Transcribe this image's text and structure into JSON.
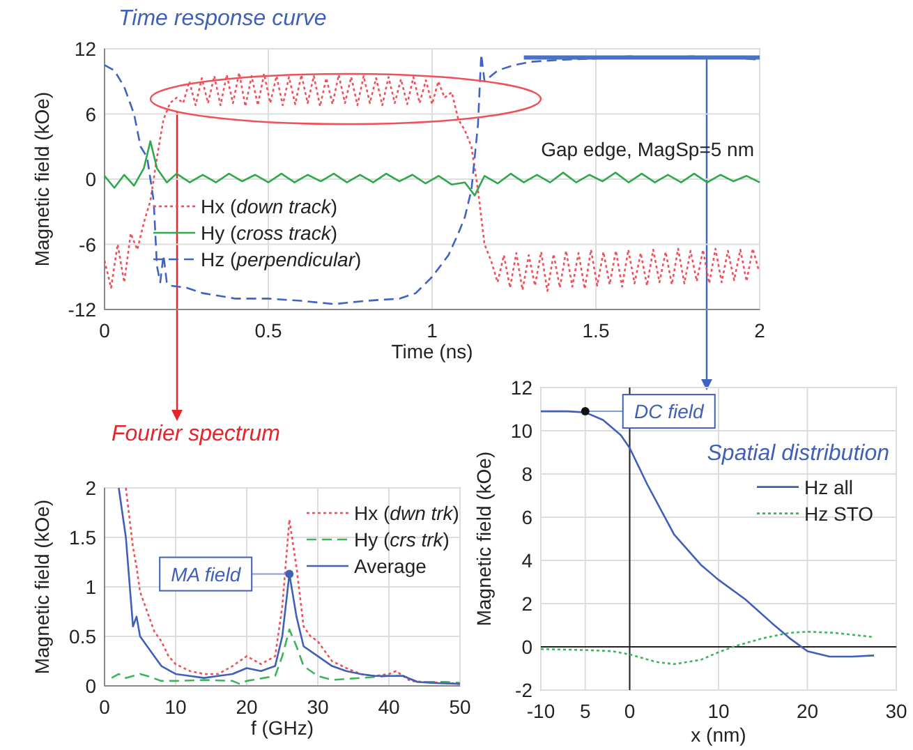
{
  "chart_data": [
    {
      "type": "line",
      "title": "Time response curve",
      "xlabel": "Time (ns)",
      "ylabel": "Magnetic field (kOe)",
      "xlim": [
        0,
        2
      ],
      "xticks": [
        0,
        0.5,
        1,
        1.5,
        2
      ],
      "ylim": [
        -12,
        12
      ],
      "yticks": [
        -12,
        -6,
        0,
        6,
        12
      ],
      "grid": true,
      "legend": "left",
      "annotations": [
        "Gap edge, MagSp=5 nm"
      ],
      "series": [
        {
          "name": "Hx (down track)",
          "color": "#f0505a",
          "line_style": "dotted",
          "x": [
            0,
            0.02,
            0.04,
            0.06,
            0.08,
            0.1,
            0.12,
            0.14,
            0.16,
            0.18,
            0.2,
            0.22,
            0.24,
            0.259,
            0.278,
            0.297,
            0.316,
            0.335,
            0.354,
            0.373,
            0.392,
            0.411,
            0.43,
            0.449,
            0.468,
            0.487,
            0.506,
            0.525,
            0.544,
            0.563,
            0.582,
            0.601,
            0.62,
            0.639,
            0.658,
            0.677,
            0.696,
            0.715,
            0.734,
            0.753,
            0.772,
            0.791,
            0.81,
            0.829,
            0.848,
            0.867,
            0.886,
            0.905,
            0.924,
            0.943,
            0.962,
            0.981,
            1.0,
            1.019,
            1.038,
            1.06,
            1.08,
            1.1,
            1.12,
            1.14,
            1.16,
            1.18,
            1.2,
            1.219,
            1.238,
            1.257,
            1.276,
            1.295,
            1.314,
            1.333,
            1.352,
            1.371,
            1.39,
            1.409,
            1.428,
            1.447,
            1.466,
            1.485,
            1.504,
            1.523,
            1.542,
            1.561,
            1.58,
            1.599,
            1.618,
            1.637,
            1.656,
            1.675,
            1.694,
            1.713,
            1.732,
            1.751,
            1.77,
            1.789,
            1.808,
            1.827,
            1.846,
            1.865,
            1.884,
            1.903,
            1.922,
            1.941,
            1.96,
            1.979,
            1.998
          ],
          "values": [
            -7.5,
            -10,
            -6,
            -9.5,
            -5,
            -6.5,
            -4,
            -2,
            2,
            5.5,
            7,
            7.5,
            7,
            9,
            6.8,
            9.3,
            7,
            9.5,
            6.8,
            9.6,
            7,
            9.8,
            6.7,
            9.5,
            6.8,
            9.7,
            7,
            9.5,
            6.8,
            9.4,
            6.9,
            9.6,
            7,
            9.5,
            6.7,
            9.3,
            6.9,
            9.6,
            7,
            9.4,
            6.8,
            9.5,
            7,
            9.3,
            6.8,
            9.4,
            7,
            9.2,
            6.9,
            9.4,
            7,
            9.1,
            6.9,
            9,
            7.5,
            8,
            5.5,
            4.5,
            3,
            -1,
            -6,
            -7.5,
            -9.5,
            -7,
            -10,
            -6.8,
            -10.2,
            -7,
            -9.8,
            -6.7,
            -10.3,
            -6.9,
            -10,
            -6.6,
            -9.9,
            -6.8,
            -10.1,
            -6.5,
            -9.8,
            -6.7,
            -9.7,
            -6.6,
            -9.9,
            -6.5,
            -9.6,
            -6.8,
            -9.8,
            -6.5,
            -9.5,
            -6.7,
            -9.7,
            -6.4,
            -9.6,
            -6.6,
            -9.4,
            -6.5,
            -9.6,
            -6.4,
            -9.5,
            -6.6,
            -9.3,
            -6.5,
            -9.4,
            -6.4,
            -8.5
          ]
        },
        {
          "name": "Hy (cross track)",
          "color": "#2ea84a",
          "line_style": "solid",
          "x": [
            0,
            0.03,
            0.06,
            0.09,
            0.12,
            0.14,
            0.16,
            0.19,
            0.22,
            0.26,
            0.3,
            0.34,
            0.38,
            0.42,
            0.46,
            0.5,
            0.54,
            0.58,
            0.62,
            0.66,
            0.7,
            0.74,
            0.78,
            0.82,
            0.86,
            0.9,
            0.94,
            0.98,
            1.02,
            1.06,
            1.1,
            1.13,
            1.16,
            1.2,
            1.24,
            1.28,
            1.32,
            1.36,
            1.4,
            1.44,
            1.48,
            1.52,
            1.56,
            1.6,
            1.64,
            1.68,
            1.72,
            1.76,
            1.8,
            1.84,
            1.88,
            1.92,
            1.96,
            2
          ],
          "values": [
            0.3,
            -0.8,
            0.4,
            -0.6,
            1,
            3.5,
            1,
            -0.3,
            0.5,
            -0.3,
            0.4,
            -0.3,
            0.5,
            -0.2,
            0.4,
            -0.3,
            0.5,
            -0.3,
            0.4,
            -0.2,
            0.5,
            -0.3,
            0.4,
            -0.3,
            0.5,
            -0.2,
            0.4,
            -0.4,
            0.3,
            -0.5,
            -0.3,
            -1.5,
            0.3,
            -0.4,
            0.5,
            -0.3,
            0.4,
            -0.3,
            0.6,
            -0.3,
            0.4,
            -0.2,
            0.6,
            -0.3,
            0.5,
            -0.3,
            0.4,
            -0.3,
            0.5,
            -0.3,
            0.4,
            -0.2,
            0.3,
            -0.3
          ]
        },
        {
          "name": "Hz (perpendicular)",
          "color": "#3f63c4",
          "line_style": "dashed",
          "x": [
            0,
            0.03,
            0.06,
            0.09,
            0.11,
            0.13,
            0.15,
            0.16,
            0.17,
            0.18,
            0.19,
            0.2,
            0.25,
            0.3,
            0.4,
            0.5,
            0.6,
            0.7,
            0.8,
            0.9,
            0.95,
            1,
            1.05,
            1.08,
            1.1,
            1.12,
            1.14,
            1.15,
            1.16,
            1.2,
            1.25,
            1.3,
            1.4,
            1.5,
            1.6,
            1.7,
            1.8,
            1.9,
            2
          ],
          "values": [
            10.5,
            10,
            8.5,
            6,
            3,
            2,
            -2,
            -8,
            -9.5,
            -7,
            -9.5,
            -9.8,
            -10,
            -10.5,
            -11,
            -11,
            -11.2,
            -11.5,
            -11.2,
            -11,
            -10.5,
            -9,
            -7,
            -5,
            -3.5,
            -1,
            5,
            11.5,
            9,
            10,
            10.5,
            10.8,
            11,
            11.1,
            11.3,
            11.2,
            11.3,
            11.2,
            11
          ]
        },
        {
          "color": "#4a72c4",
          "line_style": "solid",
          "x": [
            1.28,
            2
          ],
          "values": [
            11.2,
            11.2
          ]
        }
      ]
    },
    {
      "type": "line",
      "title": "Fourier spectrum",
      "xlabel": "f (GHz)",
      "ylabel": "Magnetic field (kOe)",
      "xlim": [
        0,
        50
      ],
      "xticks": [
        0,
        10,
        20,
        30,
        40,
        50
      ],
      "ylim": [
        0,
        2
      ],
      "yticks": [
        0,
        0.5,
        1,
        1.5,
        2
      ],
      "grid": true,
      "legend": "top right",
      "annotations": [
        {
          "text": "MA field",
          "x": 26,
          "y": 1.13
        }
      ],
      "series": [
        {
          "name": "Hx (dwn trk)",
          "color": "#f0505a",
          "line_style": "dotted",
          "x": [
            3,
            4,
            4.5,
            5,
            6,
            7,
            8,
            9,
            10,
            12,
            14,
            16,
            18,
            20,
            22,
            24,
            25,
            26,
            27,
            28,
            29,
            30,
            32,
            34,
            36,
            38,
            40,
            41,
            43,
            45,
            48,
            50
          ],
          "values": [
            2,
            1.4,
            1.2,
            0.95,
            0.75,
            0.55,
            0.45,
            0.3,
            0.22,
            0.15,
            0.12,
            0.12,
            0.2,
            0.3,
            0.22,
            0.3,
            0.8,
            1.68,
            1.2,
            0.6,
            0.5,
            0.45,
            0.25,
            0.18,
            0.12,
            0.1,
            0.12,
            0.15,
            0.05,
            0.04,
            0.03,
            0.02
          ]
        },
        {
          "name": "Hy (crs trk)",
          "color": "#3cb45a",
          "line_style": "dashed",
          "x": [
            1,
            2,
            3,
            4,
            5,
            6,
            8,
            10,
            14,
            18,
            19,
            20,
            24,
            25,
            26,
            27,
            28,
            30,
            32,
            36,
            40,
            42,
            44,
            48,
            50
          ],
          "values": [
            0.08,
            0.12,
            0.08,
            0.1,
            0.12,
            0.1,
            0.05,
            0.05,
            0.06,
            0.05,
            0.02,
            0.05,
            0.1,
            0.3,
            0.57,
            0.4,
            0.2,
            0.1,
            0.06,
            0.08,
            0.1,
            0.1,
            0.04,
            0.04,
            0.03
          ]
        },
        {
          "name": "Average",
          "color": "#3f5fb8",
          "line_style": "solid",
          "x": [
            2,
            3,
            4,
            4.5,
            5,
            6,
            7,
            8,
            10,
            12,
            14,
            16,
            18,
            20,
            22,
            24,
            25,
            26,
            27,
            28,
            30,
            32,
            34,
            36,
            38,
            40,
            42,
            44,
            46,
            50
          ],
          "values": [
            2,
            1.5,
            0.6,
            0.7,
            0.5,
            0.4,
            0.3,
            0.2,
            0.12,
            0.1,
            0.08,
            0.1,
            0.12,
            0.18,
            0.15,
            0.2,
            0.5,
            1.13,
            0.7,
            0.4,
            0.3,
            0.2,
            0.15,
            0.12,
            0.1,
            0.1,
            0.1,
            0.04,
            0.03,
            0.02
          ]
        }
      ]
    },
    {
      "type": "line",
      "title": "Spatial distribution",
      "xlabel": "x (nm)",
      "ylabel": "Magnetic field (kOe)",
      "xlim": [
        -10,
        30
      ],
      "xticks": [
        -10,
        {
          "value": -5,
          "label": "5"
        },
        0,
        10,
        20,
        30
      ],
      "ylim": [
        -2,
        12
      ],
      "yticks": [
        -2,
        0,
        2,
        4,
        6,
        8,
        10,
        12
      ],
      "grid": true,
      "legend": "right",
      "annotations": [
        {
          "text": "DC field",
          "x": -5,
          "y": 10.9
        }
      ],
      "series": [
        {
          "name": "Hz  all",
          "color": "#3f5fb8",
          "line_style": "solid",
          "x": [
            -10,
            -7,
            -5,
            -3,
            -1,
            0,
            2,
            5,
            8,
            10,
            13,
            16,
            18,
            20,
            22.5,
            25,
            27.5
          ],
          "values": [
            10.9,
            10.9,
            10.85,
            10.5,
            9.8,
            9.2,
            7.5,
            5.2,
            3.8,
            3.1,
            2.2,
            1.1,
            0.4,
            -0.2,
            -0.45,
            -0.45,
            -0.4
          ]
        },
        {
          "name": "Hz  STO",
          "color": "#3cb45a",
          "line_style": "dotted",
          "x": [
            -10,
            -5,
            -2,
            0,
            3,
            5,
            8,
            10,
            12,
            15,
            18,
            20,
            23,
            27.5
          ],
          "values": [
            -0.1,
            -0.15,
            -0.2,
            -0.35,
            -0.7,
            -0.8,
            -0.6,
            -0.25,
            0.05,
            0.4,
            0.65,
            0.7,
            0.65,
            0.45
          ]
        }
      ]
    }
  ]
}
